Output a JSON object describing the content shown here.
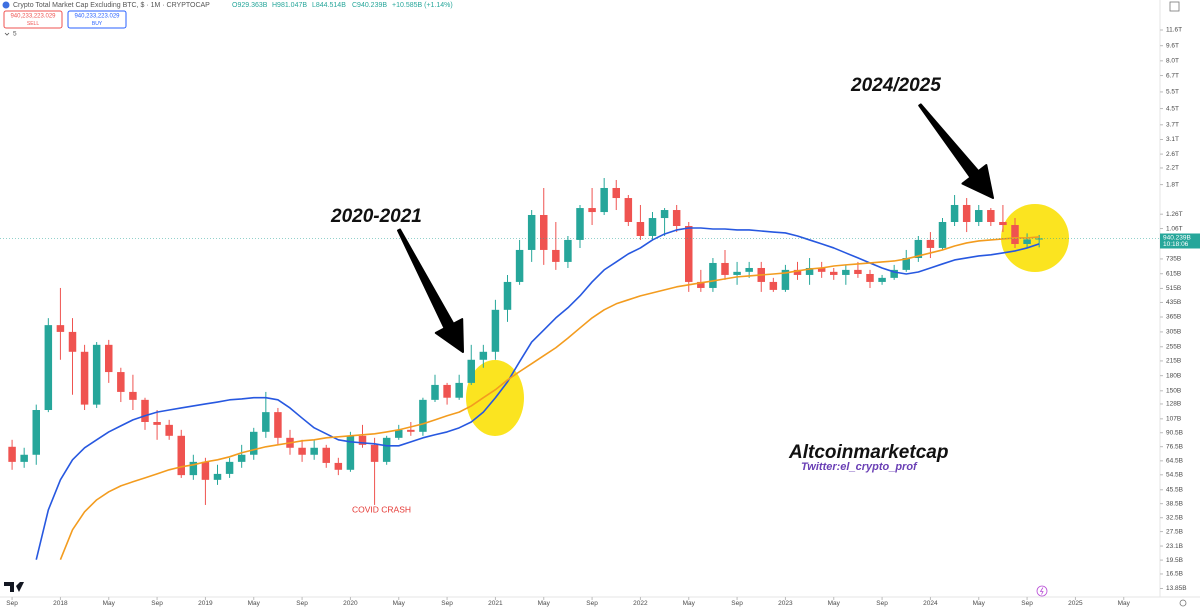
{
  "header": {
    "symbol": "Crypto Total Market Cap Excluding BTC, $ · 1M · CRYPTOCAP",
    "ohlc": [
      "O929.363B",
      "H981.047B",
      "L844.514B",
      "C940.239B",
      "+10.585B (+1.14%)"
    ],
    "sell_price": "940,233,223.029",
    "sell": "SELL",
    "buy_price": "940,233,223.029",
    "buy": "BUY",
    "indicators": "5"
  },
  "chart_data": {
    "type": "candlestick",
    "annotations": [
      "2024/2025",
      "2020-2021",
      "COVID CRASH",
      "Altcoinmarketcap",
      "Twitter:el_crypto_prof"
    ],
    "x": [
      "2017-09",
      "2017-10",
      "2017-11",
      "2017-12",
      "2018-01",
      "2018-02",
      "2018-03",
      "2018-04",
      "2018-05",
      "2018-06",
      "2018-07",
      "2018-08",
      "2018-09",
      "2018-10",
      "2018-11",
      "2018-12",
      "2019-01",
      "2019-02",
      "2019-03",
      "2019-04",
      "2019-05",
      "2019-06",
      "2019-07",
      "2019-08",
      "2019-09",
      "2019-10",
      "2019-11",
      "2019-12",
      "2020-01",
      "2020-02",
      "2020-03",
      "2020-04",
      "2020-05",
      "2020-06",
      "2020-07",
      "2020-08",
      "2020-09",
      "2020-10",
      "2020-11",
      "2020-12",
      "2021-01",
      "2021-02",
      "2021-03",
      "2021-04",
      "2021-05",
      "2021-06",
      "2021-07",
      "2021-08",
      "2021-09",
      "2021-10",
      "2021-11",
      "2021-12",
      "2022-01",
      "2022-02",
      "2022-03",
      "2022-04",
      "2022-05",
      "2022-06",
      "2022-07",
      "2022-08",
      "2022-09",
      "2022-10",
      "2022-11",
      "2022-12",
      "2023-01",
      "2023-02",
      "2023-03",
      "2023-04",
      "2023-05",
      "2023-06",
      "2023-07",
      "2023-08",
      "2023-09",
      "2023-10",
      "2023-11",
      "2023-12",
      "2024-01",
      "2024-02",
      "2024-03",
      "2024-04",
      "2024-05",
      "2024-06",
      "2024-07",
      "2024-08",
      "2024-09",
      "2024-10"
    ],
    "open": [
      76.4,
      63.7,
      69.4,
      119,
      331,
      305,
      240,
      127,
      261,
      188,
      148,
      134.5,
      103,
      99.5,
      87.2,
      54.3,
      63.7,
      51.3,
      55.1,
      63.7,
      69.4,
      91.5,
      116,
      85.1,
      75.5,
      69.4,
      75.5,
      62.9,
      57.9,
      87.2,
      78.2,
      63.7,
      85.1,
      93.7,
      91.5,
      134.5,
      161,
      138,
      165,
      218,
      240,
      398,
      557,
      819,
      1248,
      819,
      709,
      924,
      1357,
      1293,
      1728,
      1531,
      1147,
      969,
      1203,
      1325,
      1093,
      557,
      518,
      700,
      606,
      629,
      659,
      557,
      506,
      644,
      606,
      659,
      629,
      606,
      644,
      613,
      557,
      585,
      644,
      743,
      924,
      839,
      1147,
      1408,
      1147,
      1325,
      1147,
      1106,
      880,
      929.363
    ],
    "high": [
      83.1,
      75.5,
      127,
      360,
      518,
      360,
      261,
      270,
      277,
      198,
      182,
      138,
      119,
      105.7,
      93.7,
      69.4,
      66.9,
      61.5,
      66.9,
      78.2,
      96,
      148,
      122,
      93.7,
      83.1,
      83.1,
      78.2,
      66.9,
      91.5,
      99.5,
      85.1,
      87.2,
      99.5,
      103,
      138,
      182,
      165,
      182,
      261,
      261,
      449,
      606,
      924,
      1325,
      1728,
      1147,
      969,
      1408,
      1728,
      1949,
      1903,
      1588,
      1408,
      1293,
      1357,
      1408,
      1147,
      644,
      743,
      819,
      709,
      709,
      709,
      585,
      684,
      709,
      743,
      709,
      659,
      684,
      709,
      644,
      606,
      684,
      819,
      969,
      1016,
      1203,
      1588,
      1531,
      1408,
      1357,
      1408,
      1203,
      1000,
      981.047
    ],
    "low": [
      57.9,
      59.3,
      61.5,
      116,
      218,
      143,
      119,
      122,
      165,
      131,
      119,
      93.7,
      83.1,
      83.1,
      52.5,
      51.3,
      37.9,
      48.3,
      52.5,
      59.3,
      65.3,
      85.1,
      78.2,
      69.4,
      63.7,
      65.3,
      59.3,
      54.3,
      56.5,
      75.5,
      37.9,
      61.5,
      83.1,
      87.2,
      87.2,
      131,
      127,
      134.5,
      161,
      198,
      218,
      344,
      538,
      709,
      684,
      644,
      659,
      839,
      1106,
      1248,
      1325,
      1093,
      924,
      924,
      969,
      1016,
      494,
      494,
      494,
      571,
      538,
      585,
      494,
      494,
      494,
      571,
      538,
      585,
      571,
      538,
      585,
      518,
      538,
      571,
      629,
      709,
      743,
      819,
      1093,
      1016,
      1093,
      1093,
      1016,
      839,
      840,
      844.514
    ],
    "close": [
      63.7,
      69.4,
      119,
      331,
      305,
      240,
      127,
      261,
      188,
      148,
      134.5,
      103,
      99.5,
      87.2,
      54.3,
      63.7,
      51.3,
      55.1,
      63.7,
      69.4,
      91.5,
      116,
      85.1,
      75.5,
      69.4,
      75.5,
      62.9,
      57.9,
      87.2,
      78.2,
      63.7,
      85.1,
      93.7,
      91.5,
      134.5,
      161,
      138,
      165,
      218,
      240,
      398,
      557,
      819,
      1248,
      819,
      709,
      924,
      1357,
      1293,
      1728,
      1531,
      1147,
      969,
      1203,
      1325,
      1093,
      557,
      518,
      700,
      606,
      629,
      659,
      557,
      506,
      644,
      606,
      659,
      629,
      606,
      644,
      613,
      557,
      585,
      644,
      743,
      924,
      839,
      1147,
      1408,
      1147,
      1325,
      1147,
      1106,
      880,
      929.654,
      940.239
    ],
    "up_color": "#26a69a",
    "down_color": "#ef5350",
    "series": [
      {
        "color": "#2758e0",
        "values": [
          null,
          null,
          19.6,
          35.7,
          51.3,
          65.3,
          75.5,
          83.1,
          91.4,
          98.3,
          105.7,
          111,
          116,
          119,
          122,
          125,
          128,
          131,
          134.5,
          136,
          138,
          138,
          134.5,
          122,
          108,
          96.0,
          89.3,
          83.1,
          81.1,
          80.1,
          79.2,
          77.3,
          77.3,
          81.1,
          85.1,
          88.3,
          91.4,
          96.0,
          103,
          116,
          138,
          167,
          213,
          270,
          312,
          361,
          408,
          471,
          557,
          644,
          709,
          781,
          839,
          924,
          993,
          1042,
          1067,
          1067,
          1054,
          1054,
          1042,
          1042,
          1029,
          1016,
          1005,
          969,
          924,
          881,
          839,
          790,
          744,
          700,
          659,
          628,
          613,
          628,
          659,
          692,
          726,
          744,
          762,
          772,
          790,
          809,
          839,
          881
        ]
      },
      {
        "color": "#f39c1f",
        "values": [
          null,
          null,
          null,
          null,
          19.6,
          28.1,
          34.9,
          40.3,
          44.4,
          47.7,
          50.1,
          52.5,
          55.1,
          57.9,
          60.0,
          61.5,
          63.7,
          65.3,
          67.7,
          71.1,
          73.7,
          76.4,
          78.2,
          80.1,
          82.1,
          83.1,
          85.1,
          86.2,
          87.2,
          88.3,
          89.3,
          91.4,
          93.7,
          97.1,
          100.7,
          105.7,
          111,
          116,
          125,
          138,
          152,
          171,
          189,
          208,
          229,
          252,
          283,
          320,
          361,
          398,
          428,
          449,
          471,
          488,
          506,
          525,
          538,
          551,
          564,
          578,
          592,
          599,
          606,
          613,
          621,
          636,
          651,
          659,
          675,
          684,
          692,
          700,
          709,
          717,
          735,
          762,
          790,
          819,
          859,
          891,
          913,
          924,
          935,
          946,
          946,
          958
        ]
      }
    ],
    "xlim": [
      "2017-08",
      "2025-08"
    ],
    "xticks": [
      {
        "value": "2017-09",
        "label": "Sep"
      },
      {
        "value": "2018-01",
        "label": "2018"
      },
      {
        "value": "2018-05",
        "label": "May"
      },
      {
        "value": "2018-09",
        "label": "Sep"
      },
      {
        "value": "2019-01",
        "label": "2019"
      },
      {
        "value": "2019-05",
        "label": "May"
      },
      {
        "value": "2019-09",
        "label": "Sep"
      },
      {
        "value": "2020-01",
        "label": "2020"
      },
      {
        "value": "2020-05",
        "label": "May"
      },
      {
        "value": "2020-09",
        "label": "Sep"
      },
      {
        "value": "2021-01",
        "label": "2021"
      },
      {
        "value": "2021-05",
        "label": "May"
      },
      {
        "value": "2021-09",
        "label": "Sep"
      },
      {
        "value": "2022-01",
        "label": "2022"
      },
      {
        "value": "2022-05",
        "label": "May"
      },
      {
        "value": "2022-09",
        "label": "Sep"
      },
      {
        "value": "2023-01",
        "label": "2023"
      },
      {
        "value": "2023-05",
        "label": "May"
      },
      {
        "value": "2023-09",
        "label": "Sep"
      },
      {
        "value": "2024-01",
        "label": "2024"
      },
      {
        "value": "2024-05",
        "label": "May"
      },
      {
        "value": "2024-09",
        "label": "Sep"
      },
      {
        "value": "2025-01",
        "label": "2025"
      },
      {
        "value": "2025-05",
        "label": "May"
      }
    ],
    "log_scale": true,
    "ylim": [
      12.5,
      16650
    ],
    "yticks": [
      {
        "value": 11600,
        "label": "11.6T"
      },
      {
        "value": 9600,
        "label": "9.6T"
      },
      {
        "value": 8000,
        "label": "8.0T"
      },
      {
        "value": 6700,
        "label": "6.7T"
      },
      {
        "value": 5500,
        "label": "5.5T"
      },
      {
        "value": 4500,
        "label": "4.5T"
      },
      {
        "value": 3700,
        "label": "3.7T"
      },
      {
        "value": 3100,
        "label": "3.1T"
      },
      {
        "value": 2600,
        "label": "2.6T"
      },
      {
        "value": 2200,
        "label": "2.2T"
      },
      {
        "value": 1800,
        "label": "1.8T"
      },
      {
        "value": 1260,
        "label": "1.26T"
      },
      {
        "value": 1060,
        "label": "1.06T"
      },
      {
        "value": 735,
        "label": "735B"
      },
      {
        "value": 615,
        "label": "615B"
      },
      {
        "value": 515,
        "label": "515B"
      },
      {
        "value": 435,
        "label": "435B"
      },
      {
        "value": 365,
        "label": "365B"
      },
      {
        "value": 305,
        "label": "305B"
      },
      {
        "value": 255,
        "label": "255B"
      },
      {
        "value": 215,
        "label": "215B"
      },
      {
        "value": 180,
        "label": "180B"
      },
      {
        "value": 150,
        "label": "150B"
      },
      {
        "value": 128,
        "label": "128B"
      },
      {
        "value": 107,
        "label": "107B"
      },
      {
        "value": 90.5,
        "label": "90.5B"
      },
      {
        "value": 76.5,
        "label": "76.5B"
      },
      {
        "value": 64.5,
        "label": "64.5B"
      },
      {
        "value": 54.5,
        "label": "54.5B"
      },
      {
        "value": 45.5,
        "label": "45.5B"
      },
      {
        "value": 38.5,
        "label": "38.5B"
      },
      {
        "value": 32.5,
        "label": "32.5B"
      },
      {
        "value": 27.5,
        "label": "27.5B"
      },
      {
        "value": 23.1,
        "label": "23.1B"
      },
      {
        "value": 19.5,
        "label": "19.5B"
      },
      {
        "value": 16.5,
        "label": "16.5B"
      },
      {
        "value": 13.85,
        "label": "13.85B"
      }
    ],
    "price_label": {
      "value": 940.239,
      "label": "940.239B"
    },
    "countdown": "10:18:06"
  }
}
